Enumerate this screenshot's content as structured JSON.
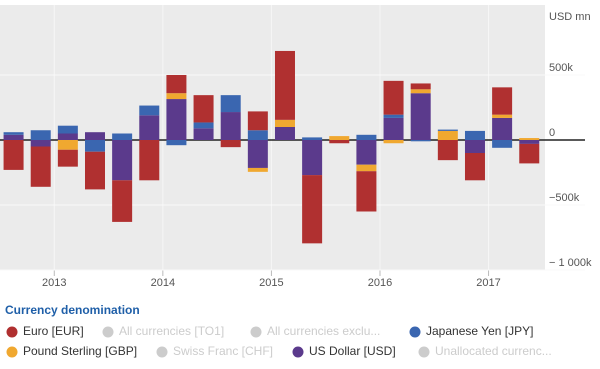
{
  "chart_data": {
    "type": "stacked-bar",
    "y_axis_title": "USD mn",
    "legend_title": "Currency denomination",
    "x": [
      2012.625,
      2012.875,
      2013.125,
      2013.375,
      2013.625,
      2013.875,
      2014.125,
      2014.375,
      2014.625,
      2014.875,
      2015.125,
      2015.375,
      2015.625,
      2015.875,
      2016.125,
      2016.375,
      2016.625,
      2016.875,
      2017.125,
      2017.375
    ],
    "xlim": [
      2012.5,
      2017.52
    ],
    "xticks": [
      2013,
      2014,
      2015,
      2016,
      2017
    ],
    "ylim": [
      -1000,
      1000
    ],
    "yticks": [
      {
        "value": -1000,
        "label": "− 1 000k"
      },
      {
        "value": -500,
        "label": "−500k"
      },
      0,
      {
        "value": 500,
        "label": "500k"
      }
    ],
    "grid": true,
    "series": [
      {
        "name": "Euro [EUR]",
        "color": "#b03030",
        "visible": true,
        "values": [
          -230,
          -310,
          -130,
          -290,
          -320,
          -310,
          140,
          210,
          -55,
          145,
          530,
          -525,
          -25,
          -310,
          260,
          45,
          -155,
          -210,
          210,
          -150
        ]
      },
      {
        "name": "All currencies [TO1]",
        "color": "#cccccc",
        "visible": false,
        "values": [
          null,
          null,
          null,
          null,
          null,
          null,
          null,
          null,
          null,
          null,
          null,
          null,
          null,
          null,
          null,
          null,
          null,
          null,
          null,
          null
        ]
      },
      {
        "name": "All currencies exclu...",
        "color": "#cccccc",
        "visible": false,
        "values": [
          null,
          null,
          null,
          null,
          null,
          null,
          null,
          null,
          null,
          null,
          null,
          null,
          null,
          null,
          null,
          null,
          null,
          null,
          null,
          null
        ]
      },
      {
        "name": "Japanese Yen [JPY]",
        "color": "#3a66b0",
        "visible": true,
        "values": [
          20,
          75,
          60,
          -90,
          50,
          75,
          -40,
          45,
          130,
          75,
          null,
          20,
          null,
          40,
          25,
          -10,
          10,
          70,
          -60,
          null
        ]
      },
      {
        "name": "Pound Sterling [GBP]",
        "color": "#f0a830",
        "visible": true,
        "values": [
          null,
          null,
          -75,
          null,
          null,
          null,
          45,
          null,
          null,
          -30,
          55,
          null,
          30,
          -50,
          -25,
          30,
          70,
          null,
          25,
          15
        ]
      },
      {
        "name": "Swiss Franc [CHF]",
        "color": "#cccccc",
        "visible": false,
        "values": [
          null,
          null,
          null,
          null,
          null,
          null,
          null,
          null,
          null,
          null,
          null,
          null,
          null,
          null,
          null,
          null,
          null,
          null,
          null,
          null
        ]
      },
      {
        "name": "US Dollar [USD]",
        "color": "#5b3a8c",
        "visible": true,
        "values": [
          40,
          -50,
          50,
          60,
          -310,
          190,
          315,
          90,
          215,
          -215,
          100,
          -270,
          null,
          -190,
          170,
          360,
          null,
          -100,
          170,
          -30
        ]
      },
      {
        "name": "Unallocated currenc...",
        "color": "#cccccc",
        "visible": false,
        "values": [
          null,
          null,
          null,
          null,
          null,
          null,
          null,
          null,
          null,
          null,
          null,
          null,
          null,
          null,
          null,
          null,
          null,
          null,
          null,
          null
        ]
      }
    ]
  }
}
